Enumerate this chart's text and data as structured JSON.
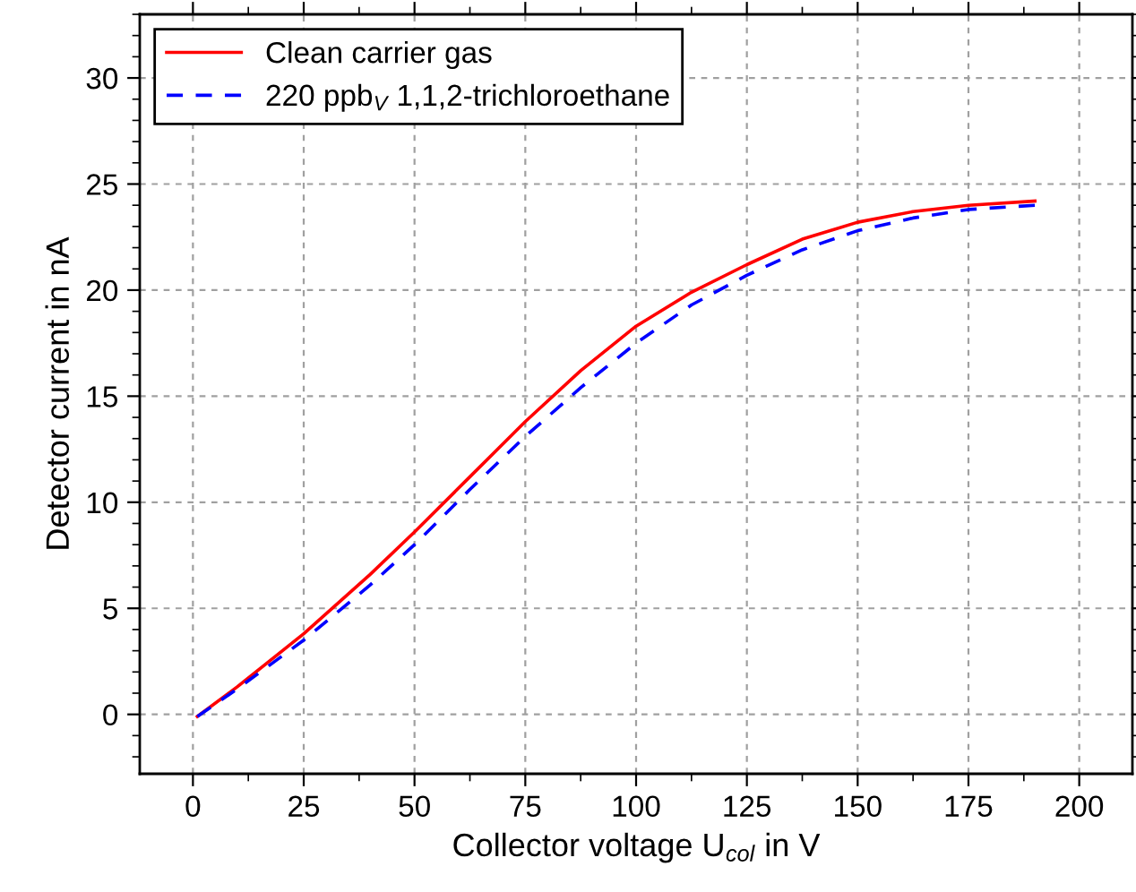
{
  "chart_data": {
    "type": "line",
    "xlabel": "Collector voltage U$_{col}$ in V",
    "ylabel": "Detector current in nA",
    "x": [
      1,
      10,
      25,
      40,
      50,
      62.5,
      75,
      87.5,
      100,
      112.5,
      125,
      137.5,
      150,
      162.5,
      175,
      190
    ],
    "series": [
      {
        "name": "Clean carrier gas",
        "color": "#ff0000",
        "line_style": "solid",
        "values": [
          -0.1,
          1.3,
          3.8,
          6.6,
          8.6,
          11.2,
          13.8,
          16.2,
          18.3,
          19.9,
          21.2,
          22.4,
          23.2,
          23.7,
          24.0,
          24.2
        ]
      },
      {
        "name": "220 ppb$_{V}$ 1,1,2-trichloroethane",
        "color": "#0000ff",
        "line_style": "dashed",
        "values": [
          -0.1,
          1.2,
          3.5,
          6.1,
          8.0,
          10.6,
          13.1,
          15.4,
          17.5,
          19.3,
          20.7,
          21.9,
          22.8,
          23.4,
          23.8,
          24.0
        ]
      }
    ],
    "xlim": [
      -12,
      212
    ],
    "xticks": [
      0,
      25,
      50,
      75,
      100,
      125,
      150,
      175,
      200
    ],
    "ylim": [
      -2.8,
      33
    ],
    "yticks": [
      0,
      5,
      10,
      15,
      20,
      25,
      30
    ],
    "grid": true,
    "legend": "top left",
    "marker": "none"
  }
}
